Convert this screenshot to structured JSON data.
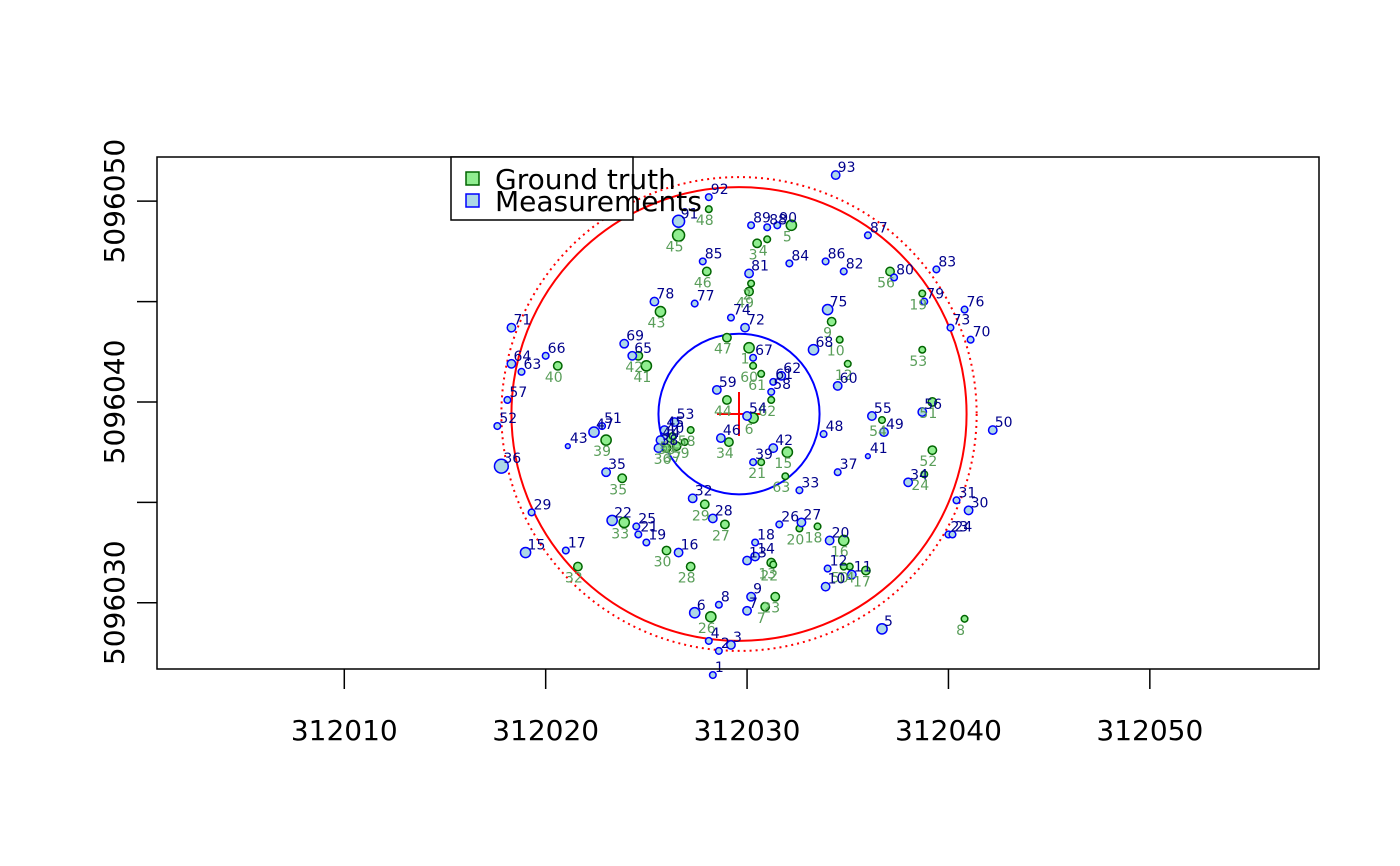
{
  "chart_data": {
    "type": "scatter",
    "xlim": [
      312000.7,
      312058.4
    ],
    "ylim": [
      5096026.7,
      5096052.2
    ],
    "x_ticks": [
      312010,
      312020,
      312030,
      312040,
      312050
    ],
    "x_tick_labels": [
      "312010",
      "312020",
      "312030",
      "312040",
      "312050"
    ],
    "y_ticks": [
      5096030,
      5096035,
      5096040,
      5096045,
      5096050
    ],
    "y_tick_labels": [
      "5096030",
      "",
      "5096040",
      "",
      "5096050"
    ],
    "legend": {
      "position": "top-left",
      "entries": [
        {
          "label": "Ground truth",
          "fill": "#90ee90",
          "stroke": "#006400"
        },
        {
          "label": "Measurements",
          "fill": "#add8e6",
          "stroke": "#0000ff"
        }
      ]
    },
    "colors": {
      "ground_truth_label": "#5a9e5a",
      "ground_truth_fill": "#90ee90",
      "ground_truth_stroke": "#006400",
      "measurement_label": "#00008b",
      "measurement_fill": "#add8e6",
      "measurement_stroke": "#0000ff",
      "outer_circle": "#ff0000",
      "inner_circle": "#0000ff",
      "center_cross": "#ff0000"
    },
    "center": {
      "x": 312029.6,
      "y": 5096039.4
    },
    "circles": [
      {
        "name": "outer-circle",
        "r": 11.3,
        "style": "solid",
        "color": "#ff0000"
      },
      {
        "name": "outer-circle-dotted",
        "r": 11.8,
        "style": "dotted",
        "color": "#ff0000"
      },
      {
        "name": "inner-circle",
        "r": 4.0,
        "style": "solid",
        "color": "#0000ff"
      }
    ],
    "ground_truth": [
      {
        "label": "1",
        "x": 312030.1,
        "y": 5096042.7,
        "s": 4
      },
      {
        "label": "2",
        "x": 312030.2,
        "y": 5096045.9,
        "s": 2
      },
      {
        "label": "3",
        "x": 312030.5,
        "y": 5096047.9,
        "s": 3
      },
      {
        "label": "4",
        "x": 312031.0,
        "y": 5096048.1,
        "s": 2
      },
      {
        "label": "5",
        "x": 312032.2,
        "y": 5096048.8,
        "s": 4
      },
      {
        "label": "6",
        "x": 312030.3,
        "y": 5096039.2,
        "s": 4
      },
      {
        "label": "7",
        "x": 312030.9,
        "y": 5096029.8,
        "s": 3
      },
      {
        "label": "8",
        "x": 312040.8,
        "y": 5096029.2,
        "s": 2
      },
      {
        "label": "9",
        "x": 312034.2,
        "y": 5096044.0,
        "s": 3
      },
      {
        "label": "10",
        "x": 312034.6,
        "y": 5096043.1,
        "s": 2
      },
      {
        "label": "12",
        "x": 312035.0,
        "y": 5096041.9,
        "s": 2
      },
      {
        "label": "13",
        "x": 312031.2,
        "y": 5096032.0,
        "s": 3
      },
      {
        "label": "14",
        "x": 312035.1,
        "y": 5096031.8,
        "s": 2
      },
      {
        "label": "15",
        "x": 312032.0,
        "y": 5096037.5,
        "s": 4
      },
      {
        "label": "16",
        "x": 312034.8,
        "y": 5096033.1,
        "s": 4
      },
      {
        "label": "17",
        "x": 312035.9,
        "y": 5096031.6,
        "s": 3
      },
      {
        "label": "18",
        "x": 312033.5,
        "y": 5096033.8,
        "s": 2
      },
      {
        "label": "19",
        "x": 312038.7,
        "y": 5096045.4,
        "s": 2
      },
      {
        "label": "20",
        "x": 312032.6,
        "y": 5096033.7,
        "s": 2
      },
      {
        "label": "21",
        "x": 312030.7,
        "y": 5096037.0,
        "s": 2
      },
      {
        "label": "22",
        "x": 312031.3,
        "y": 5096031.9,
        "s": 2
      },
      {
        "label": "23",
        "x": 312031.4,
        "y": 5096030.3,
        "s": 3
      },
      {
        "label": "24",
        "x": 312038.8,
        "y": 5096036.4,
        "s": 2
      },
      {
        "label": "26",
        "x": 312028.2,
        "y": 5096029.3,
        "s": 4
      },
      {
        "label": "27",
        "x": 312028.9,
        "y": 5096033.9,
        "s": 3
      },
      {
        "label": "28",
        "x": 312027.2,
        "y": 5096031.8,
        "s": 3
      },
      {
        "label": "29",
        "x": 312027.9,
        "y": 5096034.9,
        "s": 3
      },
      {
        "label": "30",
        "x": 312026.0,
        "y": 5096032.6,
        "s": 3
      },
      {
        "label": "32",
        "x": 312021.6,
        "y": 5096031.8,
        "s": 3
      },
      {
        "label": "33",
        "x": 312023.9,
        "y": 5096034.0,
        "s": 4
      },
      {
        "label": "34",
        "x": 312029.1,
        "y": 5096038.0,
        "s": 3
      },
      {
        "label": "35",
        "x": 312023.8,
        "y": 5096036.2,
        "s": 3
      },
      {
        "label": "36",
        "x": 312026.0,
        "y": 5096037.7,
        "s": 3
      },
      {
        "label": "37",
        "x": 312026.5,
        "y": 5096037.8,
        "s": 3
      },
      {
        "label": "38",
        "x": 312026.2,
        "y": 5096038.2,
        "s": 3
      },
      {
        "label": "39",
        "x": 312023.0,
        "y": 5096038.1,
        "s": 4
      },
      {
        "label": "40",
        "x": 312020.6,
        "y": 5096041.8,
        "s": 3
      },
      {
        "label": "41",
        "x": 312025.0,
        "y": 5096041.8,
        "s": 4
      },
      {
        "label": "42",
        "x": 312024.6,
        "y": 5096042.3,
        "s": 3
      },
      {
        "label": "43",
        "x": 312025.7,
        "y": 5096044.5,
        "s": 4
      },
      {
        "label": "44",
        "x": 312029.0,
        "y": 5096040.1,
        "s": 3
      },
      {
        "label": "45",
        "x": 312026.6,
        "y": 5096048.3,
        "s": 5
      },
      {
        "label": "46",
        "x": 312028.0,
        "y": 5096046.5,
        "s": 3
      },
      {
        "label": "47",
        "x": 312029.0,
        "y": 5096043.2,
        "s": 3
      },
      {
        "label": "48",
        "x": 312028.1,
        "y": 5096049.6,
        "s": 2
      },
      {
        "label": "49",
        "x": 312030.1,
        "y": 5096045.5,
        "s": 3
      },
      {
        "label": "50",
        "x": 312034.8,
        "y": 5096031.8,
        "s": 2
      },
      {
        "label": "51",
        "x": 312039.2,
        "y": 5096040.0,
        "s": 3
      },
      {
        "label": "52",
        "x": 312039.2,
        "y": 5096037.6,
        "s": 3
      },
      {
        "label": "53",
        "x": 312038.7,
        "y": 5096042.6,
        "s": 2
      },
      {
        "label": "54",
        "x": 312036.7,
        "y": 5096039.1,
        "s": 2
      },
      {
        "label": "56",
        "x": 312037.1,
        "y": 5096046.5,
        "s": 3
      },
      {
        "label": "57",
        "x": 312026.3,
        "y": 5096038.3,
        "s": 2
      },
      {
        "label": "58",
        "x": 312027.2,
        "y": 5096038.6,
        "s": 2
      },
      {
        "label": "59",
        "x": 312026.9,
        "y": 5096038.0,
        "s": 2
      },
      {
        "label": "60",
        "x": 312030.3,
        "y": 5096041.8,
        "s": 2
      },
      {
        "label": "61",
        "x": 312030.7,
        "y": 5096041.4,
        "s": 2
      },
      {
        "label": "62",
        "x": 312031.2,
        "y": 5096040.1,
        "s": 2
      },
      {
        "label": "63",
        "x": 312031.9,
        "y": 5096036.3,
        "s": 2
      }
    ],
    "measurements": [
      {
        "label": "1",
        "x": 312028.3,
        "y": 5096026.4,
        "s": 2
      },
      {
        "label": "2",
        "x": 312028.6,
        "y": 5096027.6,
        "s": 2
      },
      {
        "label": "3",
        "x": 312029.2,
        "y": 5096027.9,
        "s": 3
      },
      {
        "label": "4",
        "x": 312028.1,
        "y": 5096028.1,
        "s": 2
      },
      {
        "label": "5",
        "x": 312036.7,
        "y": 5096028.7,
        "s": 4
      },
      {
        "label": "6",
        "x": 312027.4,
        "y": 5096029.5,
        "s": 4
      },
      {
        "label": "7",
        "x": 312030.0,
        "y": 5096029.6,
        "s": 3
      },
      {
        "label": "8",
        "x": 312028.6,
        "y": 5096029.9,
        "s": 2
      },
      {
        "label": "9",
        "x": 312030.2,
        "y": 5096030.3,
        "s": 3
      },
      {
        "label": "10",
        "x": 312033.9,
        "y": 5096030.8,
        "s": 3
      },
      {
        "label": "11",
        "x": 312035.2,
        "y": 5096031.4,
        "s": 3
      },
      {
        "label": "12",
        "x": 312034.0,
        "y": 5096031.7,
        "s": 2
      },
      {
        "label": "13",
        "x": 312030.0,
        "y": 5096032.1,
        "s": 3
      },
      {
        "label": "14",
        "x": 312030.4,
        "y": 5096032.3,
        "s": 3
      },
      {
        "label": "15",
        "x": 312019.0,
        "y": 5096032.5,
        "s": 4
      },
      {
        "label": "16",
        "x": 312026.6,
        "y": 5096032.5,
        "s": 3
      },
      {
        "label": "17",
        "x": 312021.0,
        "y": 5096032.6,
        "s": 2
      },
      {
        "label": "18",
        "x": 312030.4,
        "y": 5096033.0,
        "s": 2
      },
      {
        "label": "19",
        "x": 312025.0,
        "y": 5096033.0,
        "s": 2
      },
      {
        "label": "20",
        "x": 312034.1,
        "y": 5096033.1,
        "s": 3
      },
      {
        "label": "21",
        "x": 312024.6,
        "y": 5096033.4,
        "s": 2
      },
      {
        "label": "22",
        "x": 312023.3,
        "y": 5096034.1,
        "s": 4
      },
      {
        "label": "23",
        "x": 312040.0,
        "y": 5096033.4,
        "s": 2
      },
      {
        "label": "24",
        "x": 312040.2,
        "y": 5096033.4,
        "s": 2
      },
      {
        "label": "25",
        "x": 312024.5,
        "y": 5096033.8,
        "s": 2
      },
      {
        "label": "26",
        "x": 312031.6,
        "y": 5096033.9,
        "s": 2
      },
      {
        "label": "27",
        "x": 312032.7,
        "y": 5096034.0,
        "s": 3
      },
      {
        "label": "28",
        "x": 312028.3,
        "y": 5096034.2,
        "s": 3
      },
      {
        "label": "29",
        "x": 312019.3,
        "y": 5096034.5,
        "s": 2
      },
      {
        "label": "30",
        "x": 312041.0,
        "y": 5096034.6,
        "s": 3
      },
      {
        "label": "31",
        "x": 312040.4,
        "y": 5096035.1,
        "s": 2
      },
      {
        "label": "32",
        "x": 312027.3,
        "y": 5096035.2,
        "s": 3
      },
      {
        "label": "33",
        "x": 312032.6,
        "y": 5096035.6,
        "s": 2
      },
      {
        "label": "34",
        "x": 312038.0,
        "y": 5096036.0,
        "s": 3
      },
      {
        "label": "35",
        "x": 312023.0,
        "y": 5096036.5,
        "s": 3
      },
      {
        "label": "36",
        "x": 312017.8,
        "y": 5096036.8,
        "s": 6
      },
      {
        "label": "37",
        "x": 312034.5,
        "y": 5096036.5,
        "s": 2
      },
      {
        "label": "38",
        "x": 312025.6,
        "y": 5096037.7,
        "s": 3
      },
      {
        "label": "39",
        "x": 312030.3,
        "y": 5096037.0,
        "s": 2
      },
      {
        "label": "40",
        "x": 312025.9,
        "y": 5096038.3,
        "s": 2
      },
      {
        "label": "41",
        "x": 312036.0,
        "y": 5096037.3,
        "s": 1
      },
      {
        "label": "42",
        "x": 312031.3,
        "y": 5096037.7,
        "s": 3
      },
      {
        "label": "43",
        "x": 312021.1,
        "y": 5096037.8,
        "s": 1
      },
      {
        "label": "44",
        "x": 312025.7,
        "y": 5096038.1,
        "s": 3
      },
      {
        "label": "45",
        "x": 312025.9,
        "y": 5096038.6,
        "s": 3
      },
      {
        "label": "46",
        "x": 312028.7,
        "y": 5096038.2,
        "s": 3
      },
      {
        "label": "47",
        "x": 312022.4,
        "y": 5096038.5,
        "s": 4
      },
      {
        "label": "48",
        "x": 312033.8,
        "y": 5096038.4,
        "s": 2
      },
      {
        "label": "49",
        "x": 312036.8,
        "y": 5096038.5,
        "s": 3
      },
      {
        "label": "50",
        "x": 312042.2,
        "y": 5096038.6,
        "s": 3
      },
      {
        "label": "51",
        "x": 312022.8,
        "y": 5096038.8,
        "s": 2
      },
      {
        "label": "52",
        "x": 312017.6,
        "y": 5096038.8,
        "s": 2
      },
      {
        "label": "53",
        "x": 312026.4,
        "y": 5096039.0,
        "s": 3
      },
      {
        "label": "54",
        "x": 312030.0,
        "y": 5096039.3,
        "s": 3
      },
      {
        "label": "55",
        "x": 312036.2,
        "y": 5096039.3,
        "s": 3
      },
      {
        "label": "56",
        "x": 312038.7,
        "y": 5096039.5,
        "s": 3
      },
      {
        "label": "57",
        "x": 312018.1,
        "y": 5096040.1,
        "s": 2
      },
      {
        "label": "58",
        "x": 312031.2,
        "y": 5096040.5,
        "s": 2
      },
      {
        "label": "59",
        "x": 312028.5,
        "y": 5096040.6,
        "s": 3
      },
      {
        "label": "60",
        "x": 312034.5,
        "y": 5096040.8,
        "s": 3
      },
      {
        "label": "61",
        "x": 312031.3,
        "y": 5096041.0,
        "s": 2
      },
      {
        "label": "62",
        "x": 312031.7,
        "y": 5096041.3,
        "s": 3
      },
      {
        "label": "63",
        "x": 312018.8,
        "y": 5096041.5,
        "s": 2
      },
      {
        "label": "64",
        "x": 312018.3,
        "y": 5096041.9,
        "s": 3
      },
      {
        "label": "65",
        "x": 312024.3,
        "y": 5096042.3,
        "s": 3
      },
      {
        "label": "66",
        "x": 312020.0,
        "y": 5096042.3,
        "s": 2
      },
      {
        "label": "67",
        "x": 312030.3,
        "y": 5096042.2,
        "s": 2
      },
      {
        "label": "68",
        "x": 312033.3,
        "y": 5096042.6,
        "s": 4
      },
      {
        "label": "69",
        "x": 312023.9,
        "y": 5096042.9,
        "s": 3
      },
      {
        "label": "70",
        "x": 312041.1,
        "y": 5096043.1,
        "s": 2
      },
      {
        "label": "71",
        "x": 312018.3,
        "y": 5096043.7,
        "s": 3
      },
      {
        "label": "72",
        "x": 312029.9,
        "y": 5096043.7,
        "s": 3
      },
      {
        "label": "73",
        "x": 312040.1,
        "y": 5096043.7,
        "s": 2
      },
      {
        "label": "74",
        "x": 312029.2,
        "y": 5096044.2,
        "s": 2
      },
      {
        "label": "75",
        "x": 312034.0,
        "y": 5096044.6,
        "s": 4
      },
      {
        "label": "76",
        "x": 312040.8,
        "y": 5096044.6,
        "s": 2
      },
      {
        "label": "77",
        "x": 312027.4,
        "y": 5096044.9,
        "s": 2
      },
      {
        "label": "78",
        "x": 312025.4,
        "y": 5096045.0,
        "s": 3
      },
      {
        "label": "79",
        "x": 312038.8,
        "y": 5096045.0,
        "s": 2
      },
      {
        "label": "80",
        "x": 312037.3,
        "y": 5096046.2,
        "s": 2
      },
      {
        "label": "81",
        "x": 312030.1,
        "y": 5096046.4,
        "s": 3
      },
      {
        "label": "82",
        "x": 312034.8,
        "y": 5096046.5,
        "s": 2
      },
      {
        "label": "83",
        "x": 312039.4,
        "y": 5096046.6,
        "s": 2
      },
      {
        "label": "84",
        "x": 312032.1,
        "y": 5096046.9,
        "s": 2
      },
      {
        "label": "85",
        "x": 312027.8,
        "y": 5096047.0,
        "s": 2
      },
      {
        "label": "86",
        "x": 312033.9,
        "y": 5096047.0,
        "s": 2
      },
      {
        "label": "87",
        "x": 312036.0,
        "y": 5096048.3,
        "s": 2
      },
      {
        "label": "88",
        "x": 312031.0,
        "y": 5096048.7,
        "s": 2
      },
      {
        "label": "89",
        "x": 312030.2,
        "y": 5096048.8,
        "s": 2
      },
      {
        "label": "90",
        "x": 312031.5,
        "y": 5096048.8,
        "s": 2
      },
      {
        "label": "91",
        "x": 312026.6,
        "y": 5096049.0,
        "s": 5
      },
      {
        "label": "92",
        "x": 312028.1,
        "y": 5096050.2,
        "s": 2
      },
      {
        "label": "93",
        "x": 312034.4,
        "y": 5096051.3,
        "s": 3
      }
    ]
  }
}
